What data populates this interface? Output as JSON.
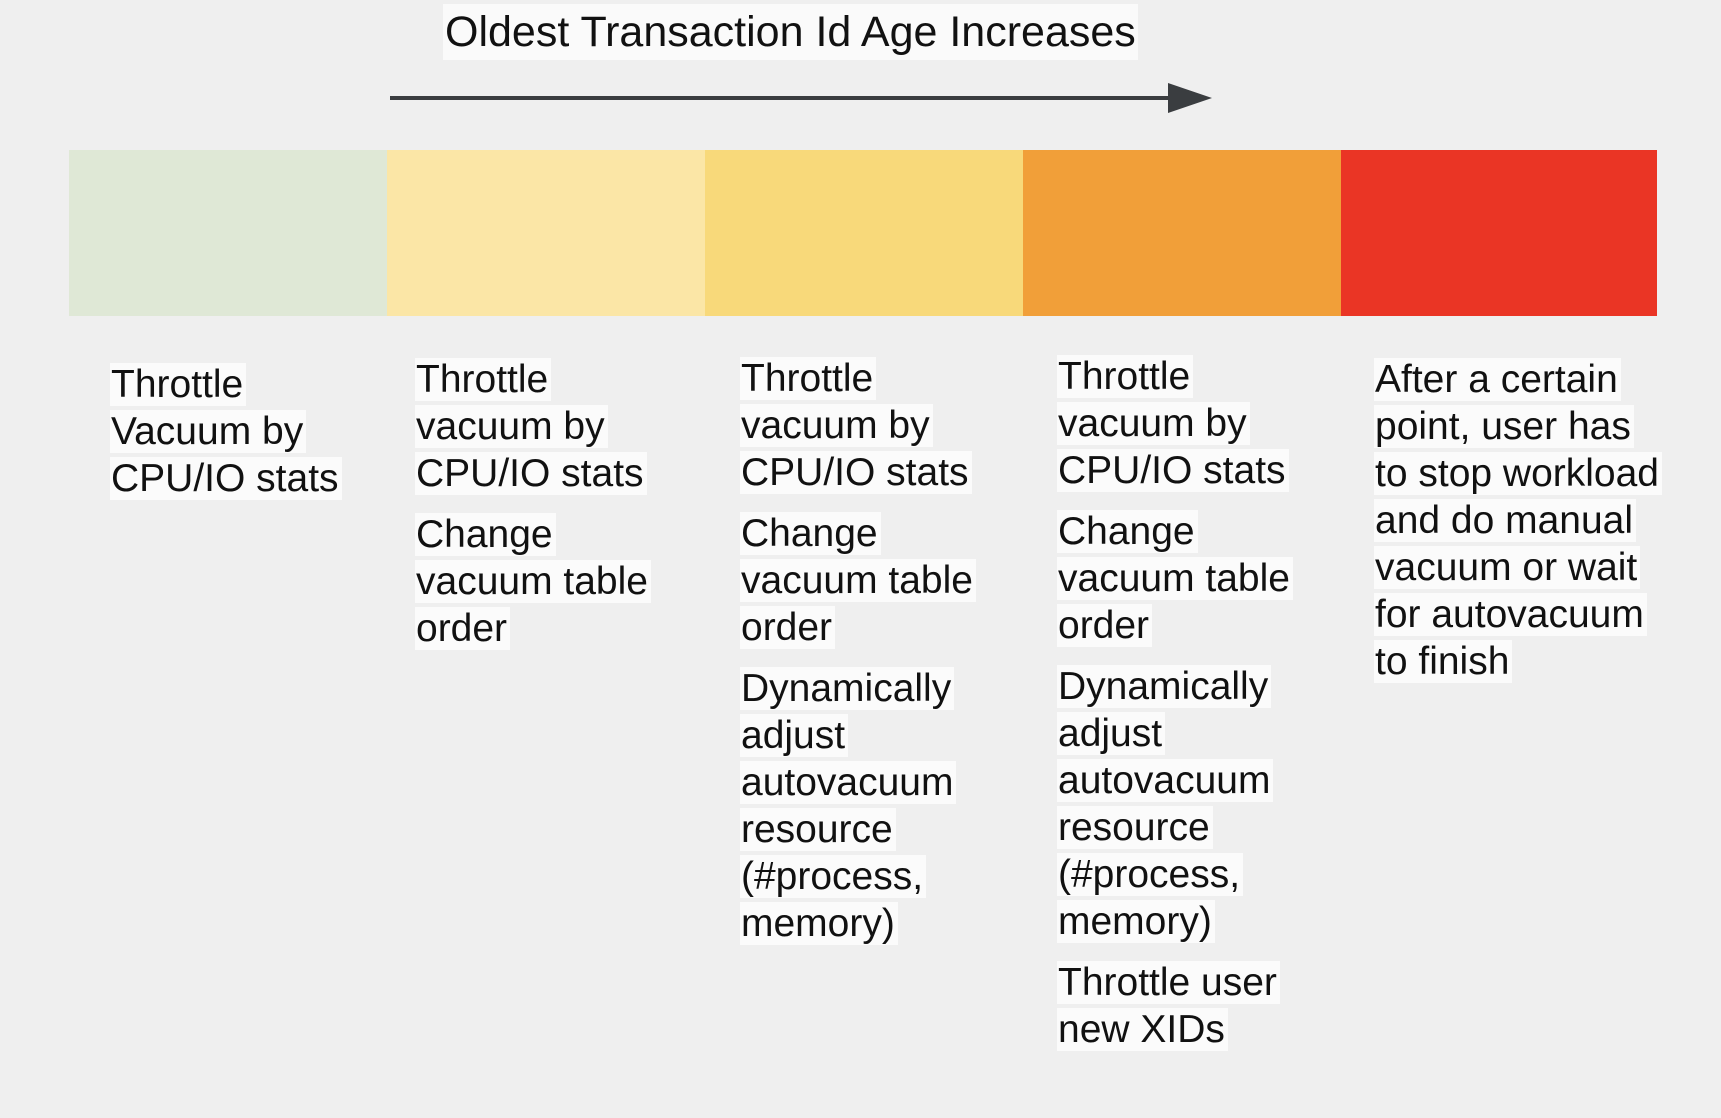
{
  "title": "Oldest Transaction Id Age Increases",
  "stages": [
    {
      "color": "#dfe8d6",
      "items": [
        "Throttle Vacuum by CPU/IO stats"
      ]
    },
    {
      "color": "#fbe6a6",
      "items": [
        "Throttle vacuum by CPU/IO stats",
        "Change vacuum table order"
      ]
    },
    {
      "color": "#f8d97a",
      "items": [
        "Throttle vacuum by CPU/IO stats",
        "Change vacuum table order",
        "Dynamically adjust autovacuum resource (#process, memory)"
      ]
    },
    {
      "color": "#f19f39",
      "items": [
        "Throttle vacuum by CPU/IO stats",
        "Change vacuum table order",
        "Dynamically adjust autovacuum resource (#process, memory)",
        "Throttle user new XIDs"
      ]
    },
    {
      "color": "#ea3525",
      "items": [
        "After a certain point, user has to stop workload and do manual vacuum or wait for autovacuum to finish"
      ]
    }
  ]
}
